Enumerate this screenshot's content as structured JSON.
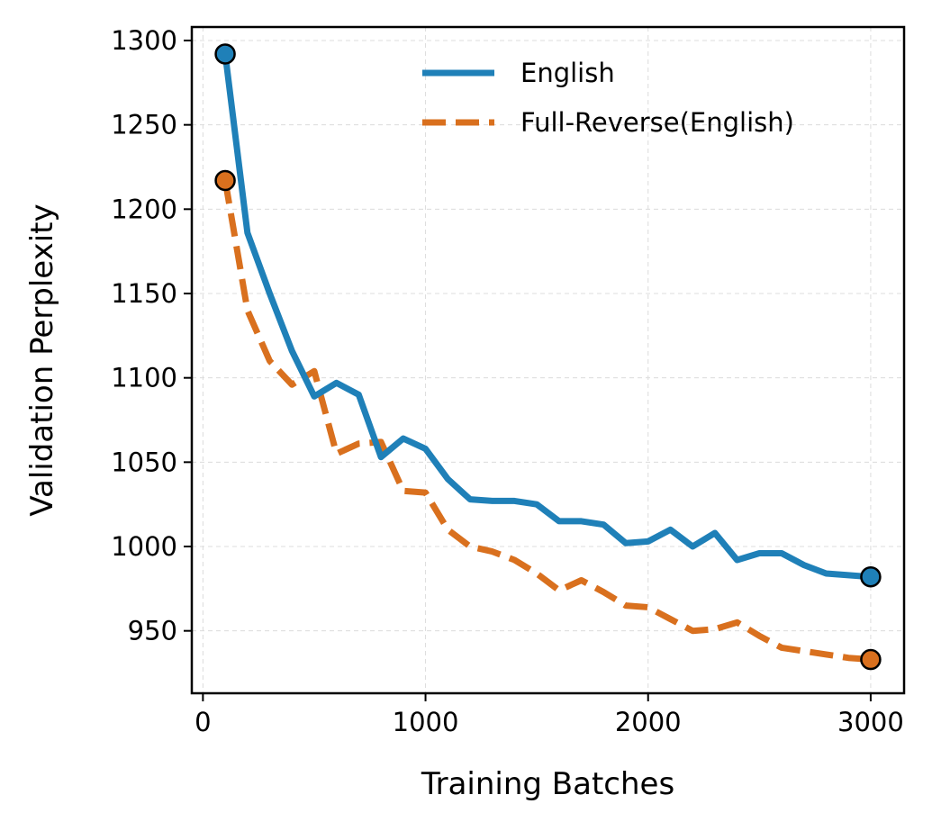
{
  "chart_data": {
    "type": "line",
    "title": "",
    "xlabel": "Training Batches",
    "ylabel": "Validation Perplexity",
    "xlim": [
      -50,
      3150
    ],
    "ylim": [
      913,
      1308
    ],
    "xticks": [
      0,
      1000,
      2000,
      3000
    ],
    "xtick_labels": [
      "0",
      "1000",
      "2000",
      "3000"
    ],
    "yticks": [
      950,
      1000,
      1050,
      1100,
      1150,
      1200,
      1250,
      1300
    ],
    "ytick_labels": [
      "950",
      "1000",
      "1050",
      "1100",
      "1150",
      "1200",
      "1250",
      "1300"
    ],
    "grid": true,
    "legend_position": "top-right",
    "x": [
      100,
      200,
      300,
      400,
      500,
      600,
      700,
      800,
      900,
      1000,
      1100,
      1200,
      1300,
      1400,
      1500,
      1600,
      1700,
      1800,
      1900,
      2000,
      2100,
      2200,
      2300,
      2400,
      2500,
      2600,
      2700,
      2800,
      2900,
      3000
    ],
    "series": [
      {
        "name": "English",
        "color": "#1f80b8",
        "style": "solid",
        "values": [
          1292,
          1186,
          1150,
          1116,
          1089,
          1097,
          1090,
          1053,
          1064,
          1058,
          1040,
          1028,
          1027,
          1027,
          1025,
          1015,
          1015,
          1013,
          1002,
          1003,
          1010,
          1000,
          1008,
          992,
          996,
          996,
          989,
          984,
          983,
          982
        ]
      },
      {
        "name": "Full-Reverse(English)",
        "color": "#d9701e",
        "style": "dashed",
        "values": [
          1217,
          1140,
          1110,
          1096,
          1104,
          1055,
          1061,
          1062,
          1033,
          1032,
          1010,
          1000,
          997,
          992,
          984,
          974,
          980,
          973,
          965,
          964,
          957,
          950,
          951,
          955,
          947,
          940,
          938,
          936,
          934,
          933
        ]
      }
    ]
  }
}
